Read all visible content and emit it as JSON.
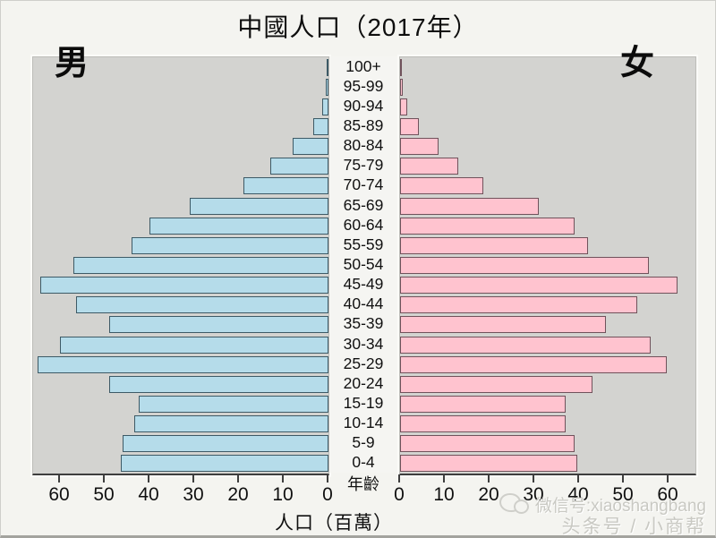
{
  "title": "中國人口（2017年）",
  "panel": {
    "male_label": "男",
    "female_label": "女"
  },
  "axis": {
    "left_ticks": [
      60,
      50,
      40,
      30,
      20,
      10,
      0
    ],
    "right_ticks": [
      0,
      10,
      20,
      30,
      40,
      50,
      60
    ],
    "xlabel": "人口（百萬）",
    "age_label": "年齡"
  },
  "watermark": {
    "line1": "微信号:xiaoshangbang",
    "line2": "头条号 / 小商帮",
    "icon": "wechat-icon"
  },
  "colors": {
    "page_bg": "#f4f4f0",
    "panel_bg": "#d3d3d0",
    "male_fill": "#b5dcea",
    "male_border": "#3d5a66",
    "female_fill": "#ffc3cf",
    "female_border": "#70525b",
    "axis_line": "#3e3e3e",
    "text": "#111111",
    "watermark_text": "#c9c9c3"
  },
  "chart_data": {
    "type": "bar",
    "subtype": "population-pyramid",
    "title": "中國人口（2017年）",
    "xlabel": "人口（百萬）",
    "unit": "millions",
    "x_range_each_side": [
      0,
      66
    ],
    "tick_step": 10,
    "grid": false,
    "categories_top_to_bottom": [
      "100+",
      "95-99",
      "90-94",
      "85-89",
      "80-84",
      "75-79",
      "70-74",
      "65-69",
      "60-64",
      "55-59",
      "50-54",
      "45-49",
      "40-44",
      "35-39",
      "30-34",
      "25-29",
      "20-24",
      "15-19",
      "10-14",
      "5-9",
      "0-4"
    ],
    "series": [
      {
        "name": "男",
        "side": "left",
        "values": [
          0.3,
          0.7,
          1.4,
          3.4,
          8,
          13,
          19,
          31,
          40,
          44,
          57,
          64.5,
          56.5,
          49,
          60,
          65,
          49,
          42.5,
          43.5,
          46,
          46.5
        ]
      },
      {
        "name": "女",
        "side": "right",
        "values": [
          0.2,
          0.6,
          1.5,
          4.2,
          8.5,
          13,
          18.5,
          31,
          39,
          42,
          55.5,
          62,
          53,
          46,
          56,
          59.5,
          43,
          37,
          37,
          39,
          39.5
        ]
      }
    ]
  }
}
